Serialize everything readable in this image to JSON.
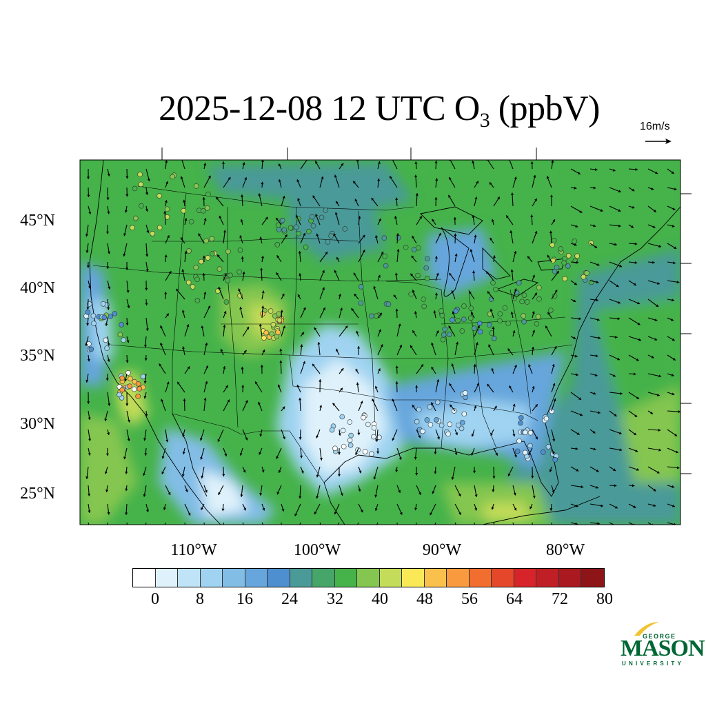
{
  "title": {
    "main": "2025-12-08 12 UTC O",
    "sub": "3",
    "unit": " (ppbV)"
  },
  "vector_reference": {
    "label": "16m/s"
  },
  "lat_labels": [
    "45°N",
    "40°N",
    "35°N",
    "30°N",
    "25°N"
  ],
  "lon_labels": [
    "110°W",
    "100°W",
    "90°W",
    "80°W"
  ],
  "colorbar": {
    "colors": [
      "#ffffff",
      "#dff2fb",
      "#bfe4f7",
      "#9fd3f1",
      "#82bde6",
      "#66a6dc",
      "#4d8fcf",
      "#4a9a98",
      "#46a66a",
      "#45b24a",
      "#84c650",
      "#c3dc59",
      "#f9e956",
      "#f9c04b",
      "#f89a3d",
      "#f26e2e",
      "#e5472b",
      "#d7242a",
      "#c01f26",
      "#a9191f",
      "#8d1518"
    ],
    "labels": [
      "0",
      "8",
      "16",
      "24",
      "32",
      "40",
      "48",
      "56",
      "64",
      "72",
      "80"
    ]
  },
  "logo": {
    "top": "GEORGE",
    "main": "MASON",
    "bottom": "UNIVERSITY",
    "color": "#006633",
    "accent": "#f2c230"
  },
  "chart_data": {
    "type": "map",
    "field": "surface O3 (ppbV) with wind vectors and monitor-site markers",
    "lat_range": [
      22.5,
      49.5
    ],
    "lon_range": [
      -120.5,
      -71.5
    ],
    "lat_ticks": [
      45,
      40,
      35,
      30,
      25
    ],
    "lon_ticks": [
      -110,
      -100,
      -90,
      -80
    ],
    "dominant_value_range": [
      16,
      40
    ],
    "high_values_near": "Colorado Front Range and southern California (~44-56 ppbV)",
    "low_values_over": "Texas / Oklahoma plains and Gulf coast (~0-16 ppbV)"
  }
}
